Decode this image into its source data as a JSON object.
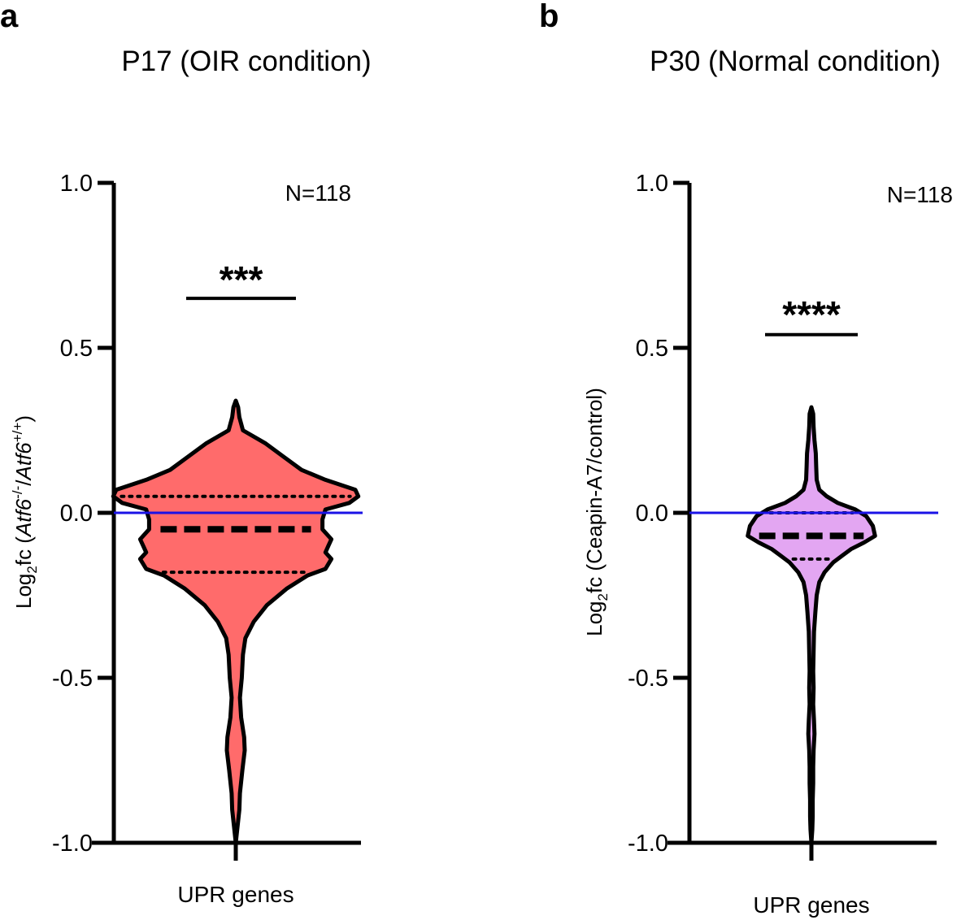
{
  "chart_data": [
    {
      "type": "violin",
      "panel": "a",
      "title": "P17 (OIR condition)",
      "ylabel_parts": [
        "Log",
        "2",
        "fc (",
        "Atf6",
        "-/-",
        "/",
        "Atf6",
        "+/+",
        ")"
      ],
      "xlabel": "UPR genes",
      "category": "UPR genes",
      "ylim": [
        -1.0,
        1.0
      ],
      "yticks": [
        1.0,
        0.5,
        0.0,
        -0.5,
        -1.0
      ],
      "ytick_labels": [
        "1.0",
        "0.5",
        "0.0",
        "-0.5",
        "-1.0"
      ],
      "n_label": "N=118",
      "significance": "***",
      "significance_bar_y": 0.65,
      "median": -0.05,
      "quartiles": [
        -0.18,
        0.05
      ],
      "min": -1.0,
      "max": 0.34,
      "reference_line_y": 0.0,
      "colors": {
        "fill": "#ff6b6b",
        "reference_line": "#1a12e6",
        "outline": "#000000"
      },
      "density": [
        [
          0.34,
          0.0
        ],
        [
          0.32,
          0.004
        ],
        [
          0.29,
          0.006
        ],
        [
          0.25,
          0.012
        ],
        [
          0.21,
          0.05
        ],
        [
          0.17,
          0.08
        ],
        [
          0.13,
          0.11
        ],
        [
          0.1,
          0.15
        ],
        [
          0.07,
          0.2
        ],
        [
          0.05,
          0.205
        ],
        [
          0.03,
          0.19
        ],
        [
          0.01,
          0.15
        ],
        [
          -0.02,
          0.145
        ],
        [
          -0.05,
          0.145
        ],
        [
          -0.08,
          0.16
        ],
        [
          -0.1,
          0.155
        ],
        [
          -0.12,
          0.15
        ],
        [
          -0.14,
          0.16
        ],
        [
          -0.17,
          0.15
        ],
        [
          -0.19,
          0.12
        ],
        [
          -0.23,
          0.085
        ],
        [
          -0.28,
          0.052
        ],
        [
          -0.33,
          0.03
        ],
        [
          -0.38,
          0.016
        ],
        [
          -0.43,
          0.012
        ],
        [
          -0.5,
          0.01
        ],
        [
          -0.56,
          0.007
        ],
        [
          -0.62,
          0.009
        ],
        [
          -0.68,
          0.014
        ],
        [
          -0.72,
          0.015
        ],
        [
          -0.78,
          0.011
        ],
        [
          -0.85,
          0.007
        ],
        [
          -0.9,
          0.006
        ],
        [
          -0.95,
          0.003
        ],
        [
          -1.0,
          0.0
        ]
      ]
    },
    {
      "type": "violin",
      "panel": "b",
      "title": "P30 (Normal condition)",
      "ylabel_parts": [
        "Log",
        "2",
        "fc (Ceapin-A7/control)"
      ],
      "xlabel": "UPR genes",
      "category": "UPR genes",
      "ylim": [
        -1.0,
        1.0
      ],
      "yticks": [
        1.0,
        0.5,
        0.0,
        -0.5,
        -1.0
      ],
      "ytick_labels": [
        "1.0",
        "0.5",
        "0.0",
        "-0.5",
        "-1.0"
      ],
      "n_label": "N=118",
      "significance": "****",
      "significance_bar_y": 0.54,
      "median": -0.07,
      "quartiles": [
        -0.14,
        0.0
      ],
      "min": -1.0,
      "max": 0.32,
      "reference_line_y": 0.0,
      "colors": {
        "fill": "#e3a6f2",
        "reference_line": "#1a12e6",
        "outline": "#000000"
      },
      "density": [
        [
          0.32,
          0.0
        ],
        [
          0.3,
          0.004
        ],
        [
          0.26,
          0.005
        ],
        [
          0.22,
          0.007
        ],
        [
          0.18,
          0.01
        ],
        [
          0.14,
          0.011
        ],
        [
          0.1,
          0.012
        ],
        [
          0.07,
          0.018
        ],
        [
          0.05,
          0.035
        ],
        [
          0.03,
          0.06
        ],
        [
          0.01,
          0.1
        ],
        [
          -0.01,
          0.125
        ],
        [
          -0.04,
          0.14
        ],
        [
          -0.07,
          0.145
        ],
        [
          -0.09,
          0.12
        ],
        [
          -0.11,
          0.09
        ],
        [
          -0.13,
          0.07
        ],
        [
          -0.15,
          0.05
        ],
        [
          -0.18,
          0.03
        ],
        [
          -0.21,
          0.018
        ],
        [
          -0.25,
          0.012
        ],
        [
          -0.3,
          0.009
        ],
        [
          -0.36,
          0.006
        ],
        [
          -0.42,
          0.005
        ],
        [
          -0.48,
          0.004
        ],
        [
          -0.53,
          0.005
        ],
        [
          -0.58,
          0.004
        ],
        [
          -0.63,
          0.006
        ],
        [
          -0.67,
          0.007
        ],
        [
          -0.72,
          0.005
        ],
        [
          -0.77,
          0.004
        ],
        [
          -0.82,
          0.004
        ],
        [
          -0.87,
          0.003
        ],
        [
          -0.92,
          0.003
        ],
        [
          -0.96,
          0.002
        ],
        [
          -1.0,
          0.0
        ]
      ]
    }
  ]
}
